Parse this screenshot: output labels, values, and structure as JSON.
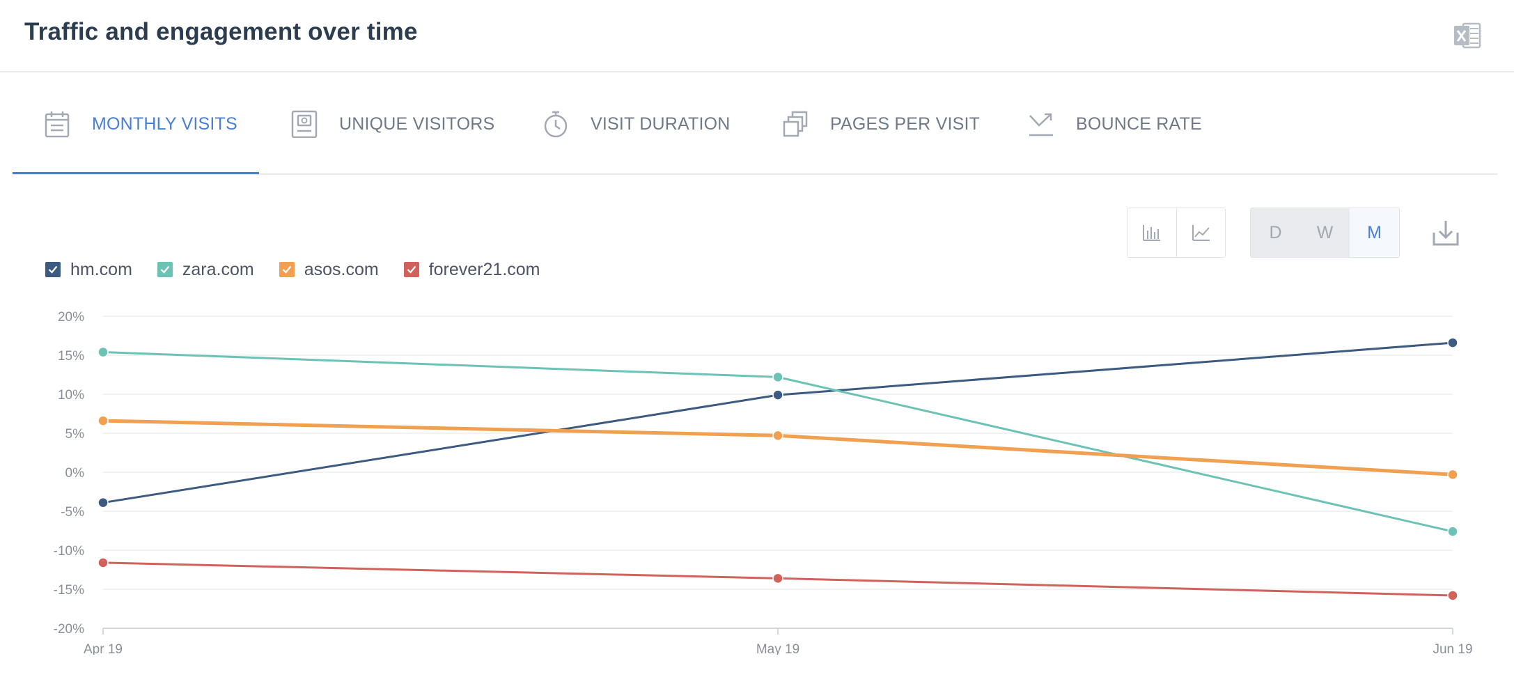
{
  "header": {
    "title": "Traffic and engagement over time",
    "export_icon": "excel-icon"
  },
  "tabs": [
    {
      "label": "MONTHLY VISITS",
      "icon": "calendar-icon",
      "active": true
    },
    {
      "label": "UNIQUE VISITORS",
      "icon": "person-badge-icon",
      "active": false
    },
    {
      "label": "VISIT DURATION",
      "icon": "stopwatch-icon",
      "active": false
    },
    {
      "label": "PAGES PER VISIT",
      "icon": "pages-icon",
      "active": false
    },
    {
      "label": "BOUNCE RATE",
      "icon": "bounce-arrow-icon",
      "active": false
    }
  ],
  "toolbar": {
    "chart_types": [
      {
        "icon": "bar-chart-icon",
        "selected": false
      },
      {
        "icon": "line-chart-icon",
        "selected": true
      }
    ],
    "periods": [
      {
        "label": "D",
        "selected": false
      },
      {
        "label": "W",
        "selected": false
      },
      {
        "label": "M",
        "selected": true
      }
    ],
    "download_icon": "download-icon"
  },
  "colors": {
    "accent": "#4a7fd6",
    "text": "#2b3d4f"
  },
  "chart_data": {
    "type": "line",
    "x": [
      "Apr 19",
      "May 19",
      "Jun 19"
    ],
    "series": [
      {
        "name": "hm.com",
        "color": "#3d5a80",
        "values": [
          -3.9,
          9.9,
          16.6
        ]
      },
      {
        "name": "zara.com",
        "color": "#6cc3b5",
        "values": [
          15.4,
          12.2,
          -7.6
        ]
      },
      {
        "name": "asos.com",
        "color": "#f0a050",
        "values": [
          6.6,
          4.7,
          -0.3
        ]
      },
      {
        "name": "forever21.com",
        "color": "#d1625b",
        "values": [
          -11.6,
          -13.6,
          -15.8
        ]
      }
    ],
    "yticks": [
      "20%",
      "15%",
      "10%",
      "5%",
      "0%",
      "-5%",
      "-10%",
      "-15%",
      "-20%"
    ],
    "ylim": [
      -20,
      20
    ],
    "xlabel": "",
    "ylabel": "",
    "grid": true,
    "legend_position": "top-left"
  }
}
